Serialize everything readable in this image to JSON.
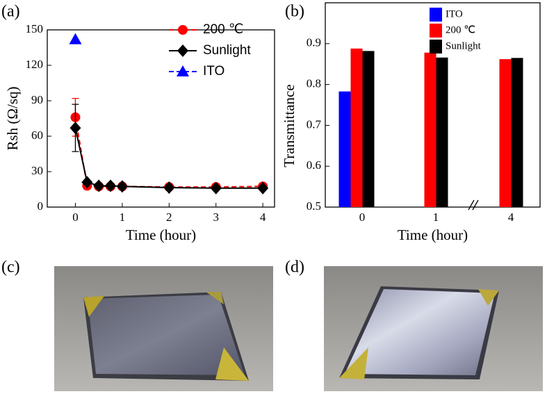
{
  "figure_labels": [
    "(a)",
    "(b)",
    "(c)",
    "(d)"
  ],
  "chart_data": [
    {
      "type": "line",
      "xlabel": "Time (hour)",
      "ylabel": "Rsh (Ω/sq)",
      "xlim": [
        -0.6,
        4.25
      ],
      "xticks": [
        0,
        1,
        2,
        3,
        4
      ],
      "ylim": [
        0,
        150
      ],
      "yticks": [
        0,
        30,
        60,
        90,
        120,
        150
      ],
      "legend": "upper right",
      "series": [
        {
          "name": "200 ℃",
          "color": "#ff0000",
          "marker": "circle",
          "linestyle": "dashed",
          "x": [
            0,
            0.25,
            0.5,
            0.75,
            1,
            2,
            3,
            4
          ],
          "values": [
            76,
            18,
            17.5,
            17.5,
            17.5,
            17,
            17,
            17.5
          ],
          "errors": [
            16,
            null,
            null,
            null,
            null,
            null,
            null,
            null
          ]
        },
        {
          "name": "Sunlight",
          "color": "#000000",
          "marker": "diamond",
          "linestyle": "solid",
          "x": [
            0,
            0.25,
            0.5,
            0.75,
            1,
            2,
            3,
            4
          ],
          "values": [
            67,
            21,
            18,
            18,
            17.5,
            16.5,
            16,
            16
          ],
          "errors": [
            20,
            null,
            null,
            null,
            null,
            null,
            null,
            null
          ]
        },
        {
          "name": "ITO",
          "color": "#0000ff",
          "marker": "triangle",
          "linestyle": "dashed",
          "x": [
            0
          ],
          "values": [
            142
          ],
          "errors": [
            null
          ]
        }
      ]
    },
    {
      "type": "bar",
      "xlabel": "Time (hour)",
      "ylabel": "Transmittance",
      "categories": [
        "0",
        "1",
        "4"
      ],
      "ylim": [
        0.5,
        1.0
      ],
      "yticks": [
        0.5,
        0.6,
        0.7,
        0.8,
        0.9
      ],
      "legend": "upper center",
      "series": [
        {
          "name": "ITO",
          "color": "#0000ff",
          "values": [
            0.783,
            null,
            null
          ]
        },
        {
          "name": "200 ℃",
          "color": "#ff0000",
          "values": [
            0.888,
            0.878,
            0.862
          ]
        },
        {
          "name": "Sunlight",
          "color": "#000000",
          "values": [
            0.882,
            0.866,
            0.865
          ]
        }
      ]
    }
  ]
}
